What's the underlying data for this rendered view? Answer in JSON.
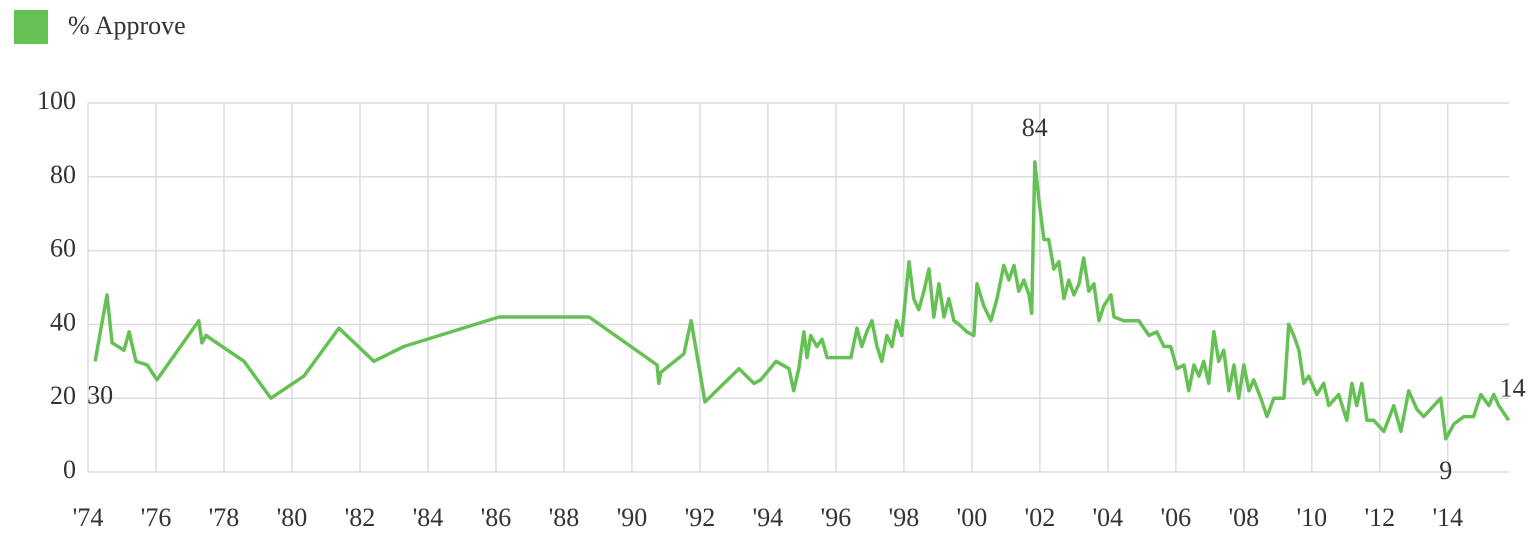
{
  "chart_data": {
    "type": "line",
    "x": [
      1974.21,
      1974.56,
      1974.71,
      1975.06,
      1975.21,
      1975.41,
      1975.74,
      1976.03,
      1977.26,
      1977.35,
      1977.47,
      1978.59,
      1979.38,
      1980.35,
      1981.38,
      1982.41,
      1983.29,
      1986.09,
      1988.74,
      1990.74,
      1990.79,
      1990.85,
      1991.53,
      1991.74,
      1992.15,
      1993.15,
      1993.59,
      1993.79,
      1994.24,
      1994.62,
      1994.76,
      1994.91,
      1995.06,
      1995.15,
      1995.26,
      1995.44,
      1995.59,
      1995.74,
      1995.94,
      1996.44,
      1996.62,
      1996.76,
      1996.91,
      1997.06,
      1997.21,
      1997.35,
      1997.5,
      1997.65,
      1997.79,
      1997.94,
      1998.15,
      1998.29,
      1998.44,
      1998.59,
      1998.74,
      1998.88,
      1999.03,
      1999.18,
      1999.32,
      1999.47,
      1999.62,
      1999.85,
      2000.06,
      2000.15,
      2000.35,
      2000.56,
      2000.74,
      2000.94,
      2001.09,
      2001.24,
      2001.38,
      2001.53,
      2001.68,
      2001.76,
      2001.85,
      2001.97,
      2002.12,
      2002.26,
      2002.41,
      2002.56,
      2002.71,
      2002.85,
      2003.0,
      2003.15,
      2003.29,
      2003.44,
      2003.59,
      2003.74,
      2003.88,
      2004.09,
      2004.18,
      2004.47,
      2004.91,
      2005.21,
      2005.44,
      2005.65,
      2005.85,
      2006.03,
      2006.24,
      2006.38,
      2006.53,
      2006.68,
      2006.82,
      2006.97,
      2007.12,
      2007.26,
      2007.41,
      2007.56,
      2007.71,
      2007.85,
      2008.0,
      2008.15,
      2008.29,
      2008.5,
      2008.68,
      2008.88,
      2009.18,
      2009.32,
      2009.47,
      2009.62,
      2009.76,
      2009.91,
      2010.15,
      2010.35,
      2010.5,
      2010.79,
      2011.03,
      2011.18,
      2011.32,
      2011.47,
      2011.62,
      2011.82,
      2012.12,
      2012.41,
      2012.62,
      2012.85,
      2013.09,
      2013.29,
      2013.59,
      2013.79,
      2013.94,
      2014.18,
      2014.47,
      2014.76,
      2014.97,
      2015.21,
      2015.35,
      2015.5,
      2015.79
    ],
    "series": [
      {
        "name": "% Approve",
        "color": "#66c155",
        "values": [
          30,
          48,
          35,
          33,
          38,
          30,
          29,
          25,
          41,
          35,
          37,
          30,
          20,
          26,
          39,
          30,
          34,
          42,
          42,
          29,
          24,
          27,
          32,
          41,
          19,
          28,
          24,
          25,
          30,
          28,
          22,
          28,
          38,
          31,
          37,
          34,
          36,
          31,
          31,
          31,
          39,
          34,
          38,
          41,
          34,
          30,
          37,
          34,
          41,
          37,
          57,
          47,
          44,
          49,
          55,
          42,
          51,
          42,
          47,
          41,
          40,
          38,
          37,
          51,
          45,
          41,
          47,
          56,
          52,
          56,
          49,
          52,
          48,
          43,
          84,
          74,
          63,
          63,
          55,
          57,
          47,
          52,
          48,
          51,
          58,
          49,
          51,
          41,
          45,
          48,
          42,
          41,
          41,
          37,
          38,
          34,
          34,
          28,
          29,
          22,
          29,
          26,
          30,
          24,
          38,
          30,
          33,
          22,
          29,
          20,
          29,
          22,
          25,
          20,
          15,
          20,
          20,
          40,
          37,
          33,
          24,
          26,
          21,
          24,
          18,
          21,
          14,
          24,
          18,
          24,
          14,
          14,
          11,
          18,
          11,
          22,
          17,
          15,
          18,
          20,
          9,
          13,
          15,
          15,
          21,
          18,
          21,
          18,
          14
        ],
        "value_labels": [
          "30",
          null,
          null,
          null,
          null,
          null,
          null,
          null,
          null,
          null,
          null,
          null,
          null,
          null,
          null,
          null,
          null,
          null,
          null,
          null,
          null,
          null,
          null,
          null,
          null,
          null,
          null,
          null,
          null,
          null,
          null,
          null,
          null,
          null,
          null,
          null,
          null,
          null,
          null,
          null,
          null,
          null,
          null,
          null,
          null,
          null,
          null,
          null,
          null,
          null,
          null,
          null,
          null,
          null,
          null,
          null,
          null,
          null,
          null,
          null,
          null,
          null,
          null,
          null,
          null,
          null,
          null,
          null,
          null,
          null,
          null,
          null,
          null,
          null,
          "84",
          null,
          null,
          null,
          null,
          null,
          null,
          null,
          null,
          null,
          null,
          null,
          null,
          null,
          null,
          null,
          null,
          null,
          null,
          null,
          null,
          null,
          null,
          null,
          null,
          null,
          null,
          null,
          null,
          null,
          null,
          null,
          null,
          null,
          null,
          null,
          null,
          null,
          null,
          null,
          null,
          null,
          null,
          null,
          null,
          null,
          null,
          null,
          null,
          null,
          null,
          null,
          null,
          null,
          null,
          null,
          null,
          null,
          null,
          null,
          null,
          null,
          null,
          null,
          null,
          null,
          "9",
          null,
          null,
          null,
          null,
          null,
          null,
          null,
          "14"
        ]
      }
    ],
    "xlim": [
      1974,
      2015.8
    ],
    "xticks": [
      {
        "value": 1974,
        "label": "'74"
      },
      {
        "value": 1976,
        "label": "'76"
      },
      {
        "value": 1978,
        "label": "'78"
      },
      {
        "value": 1980,
        "label": "'80"
      },
      {
        "value": 1982,
        "label": "'82"
      },
      {
        "value": 1984,
        "label": "'84"
      },
      {
        "value": 1986,
        "label": "'86"
      },
      {
        "value": 1988,
        "label": "'88"
      },
      {
        "value": 1990,
        "label": "'90"
      },
      {
        "value": 1992,
        "label": "'92"
      },
      {
        "value": 1994,
        "label": "'94"
      },
      {
        "value": 1996,
        "label": "'96"
      },
      {
        "value": 1998,
        "label": "'98"
      },
      {
        "value": 2000,
        "label": "'00"
      },
      {
        "value": 2002,
        "label": "'02"
      },
      {
        "value": 2004,
        "label": "'04"
      },
      {
        "value": 2006,
        "label": "'06"
      },
      {
        "value": 2008,
        "label": "'08"
      },
      {
        "value": 2010,
        "label": "'10"
      },
      {
        "value": 2012,
        "label": "'12"
      },
      {
        "value": 2014,
        "label": "'14"
      }
    ],
    "ylim": [
      0,
      100
    ],
    "yticks": [
      0,
      20,
      40,
      60,
      80,
      100
    ],
    "grid": true,
    "legend": "top-left"
  }
}
